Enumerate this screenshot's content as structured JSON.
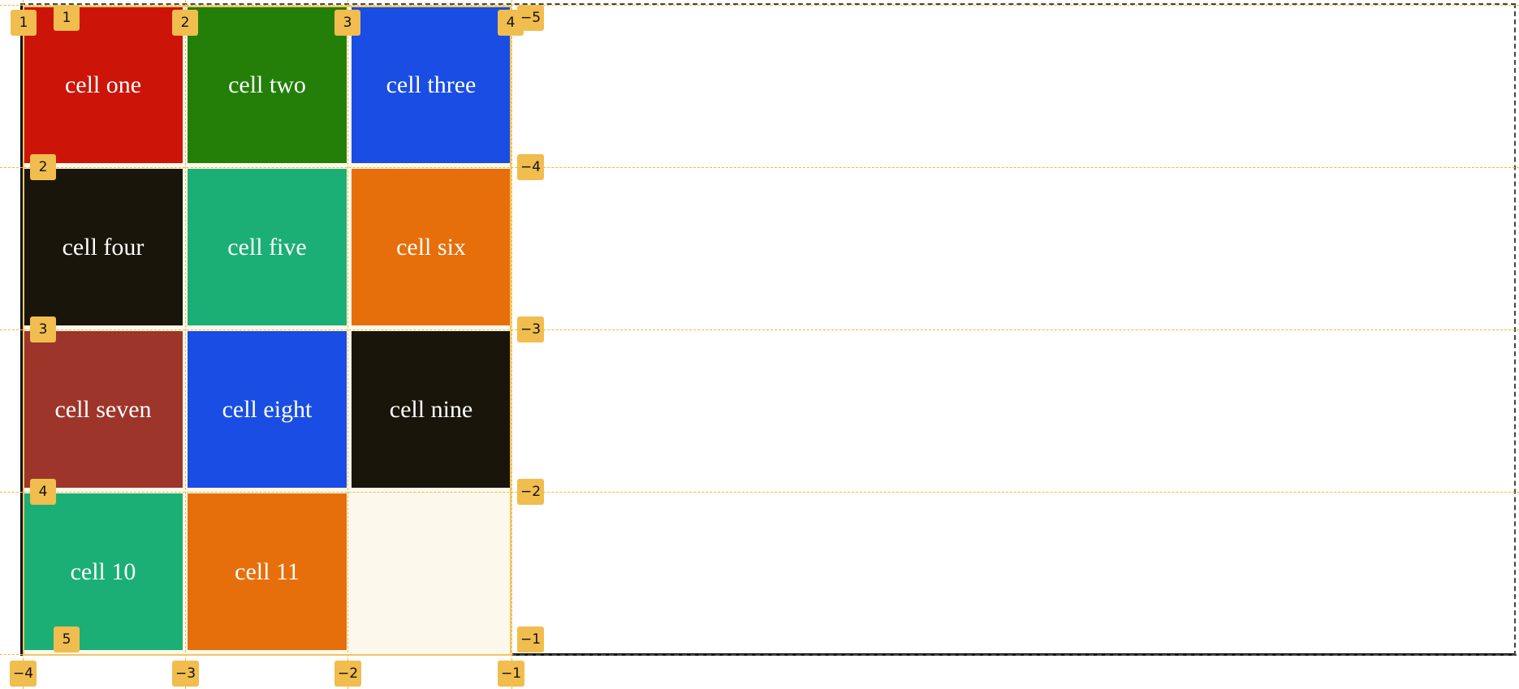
{
  "cells": [
    {
      "label": "cell one",
      "color": "#cc1408"
    },
    {
      "label": "cell two",
      "color": "#237f08"
    },
    {
      "label": "cell three",
      "color": "#194de3"
    },
    {
      "label": "cell four",
      "color": "#19150b"
    },
    {
      "label": "cell five",
      "color": "#1caf75"
    },
    {
      "label": "cell six",
      "color": "#e66f0b"
    },
    {
      "label": "cell seven",
      "color": "#9d352a"
    },
    {
      "label": "cell eight",
      "color": "#194de3"
    },
    {
      "label": "cell nine",
      "color": "#19150b"
    },
    {
      "label": "cell 10",
      "color": "#1caf75"
    },
    {
      "label": "cell 11",
      "color": "#e66f0b"
    },
    {
      "label": "",
      "color": "#fdf8ec"
    }
  ],
  "column_line_numbers": {
    "positive": [
      "1",
      "2",
      "3",
      "4"
    ],
    "negative": [
      "-4",
      "-3",
      "-2",
      "-1"
    ]
  },
  "row_line_numbers": {
    "positive": [
      "1",
      "2",
      "3",
      "4",
      "5"
    ],
    "negative": [
      "-5",
      "-4",
      "-3",
      "-2",
      "-1"
    ]
  },
  "badge_color": "#f0bd4e",
  "line_color": "#f0b93a"
}
